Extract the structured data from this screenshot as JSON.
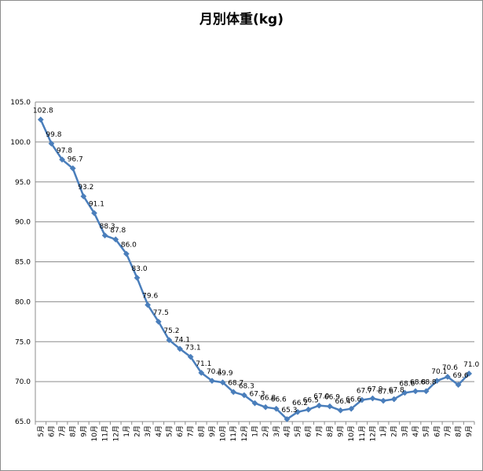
{
  "chart_data": {
    "type": "line",
    "title": "月別体重(kg)",
    "xlabel": "",
    "ylabel": "",
    "ylim": [
      65.0,
      105.0
    ],
    "yticks": [
      "65.0",
      "70.0",
      "75.0",
      "80.0",
      "85.0",
      "90.0",
      "95.0",
      "100.0",
      "105.0"
    ],
    "grid": "horizontal",
    "legend": "none",
    "line_color": "#4a7ebb",
    "categories": [
      "5月",
      "6月",
      "7月",
      "8月",
      "9月",
      "10月",
      "11月",
      "12月",
      "1月",
      "2月",
      "3月",
      "4月",
      "5月",
      "6月",
      "7月",
      "8月",
      "9月",
      "10月",
      "11月",
      "12月",
      "1月",
      "2月",
      "3月",
      "4月",
      "5月",
      "6月",
      "7月",
      "8月",
      "9月",
      "10月",
      "11月",
      "12月",
      "1月",
      "2月",
      "3月",
      "4月",
      "5月",
      "6月",
      "7月",
      "8月",
      "9月"
    ],
    "series": [
      {
        "values": [
          102.8,
          99.8,
          97.8,
          96.7,
          93.2,
          91.1,
          88.3,
          87.8,
          86.0,
          83.0,
          79.6,
          77.5,
          75.2,
          74.1,
          73.1,
          71.1,
          70.1,
          69.9,
          68.7,
          68.3,
          67.3,
          66.8,
          66.6,
          65.3,
          66.2,
          66.5,
          67.0,
          66.9,
          66.4,
          66.6,
          67.7,
          67.9,
          67.6,
          67.8,
          68.6,
          68.8,
          68.8,
          70.1,
          70.6,
          69.6,
          71.0
        ],
        "labels": [
          "102.8",
          "99.8",
          "97.8",
          "96.7",
          "93.2",
          "91.1",
          "88.3",
          "87.8",
          "86.0",
          "83.0",
          "79.6",
          "77.5",
          "75.2",
          "74.1",
          "73.1",
          "71.1",
          "70.1",
          "69.9",
          "68.7",
          "68.3",
          "67.3",
          "66.8",
          "66.6",
          "65.3",
          "66.2",
          "66.5",
          "67.0",
          "66.9",
          "66.4",
          "66.6",
          "67.7",
          "67.9",
          "67.6",
          "67.8",
          "68.6",
          "68.8",
          "68.8",
          "70.1",
          "70.6",
          "69.6",
          "71.0"
        ]
      }
    ]
  }
}
